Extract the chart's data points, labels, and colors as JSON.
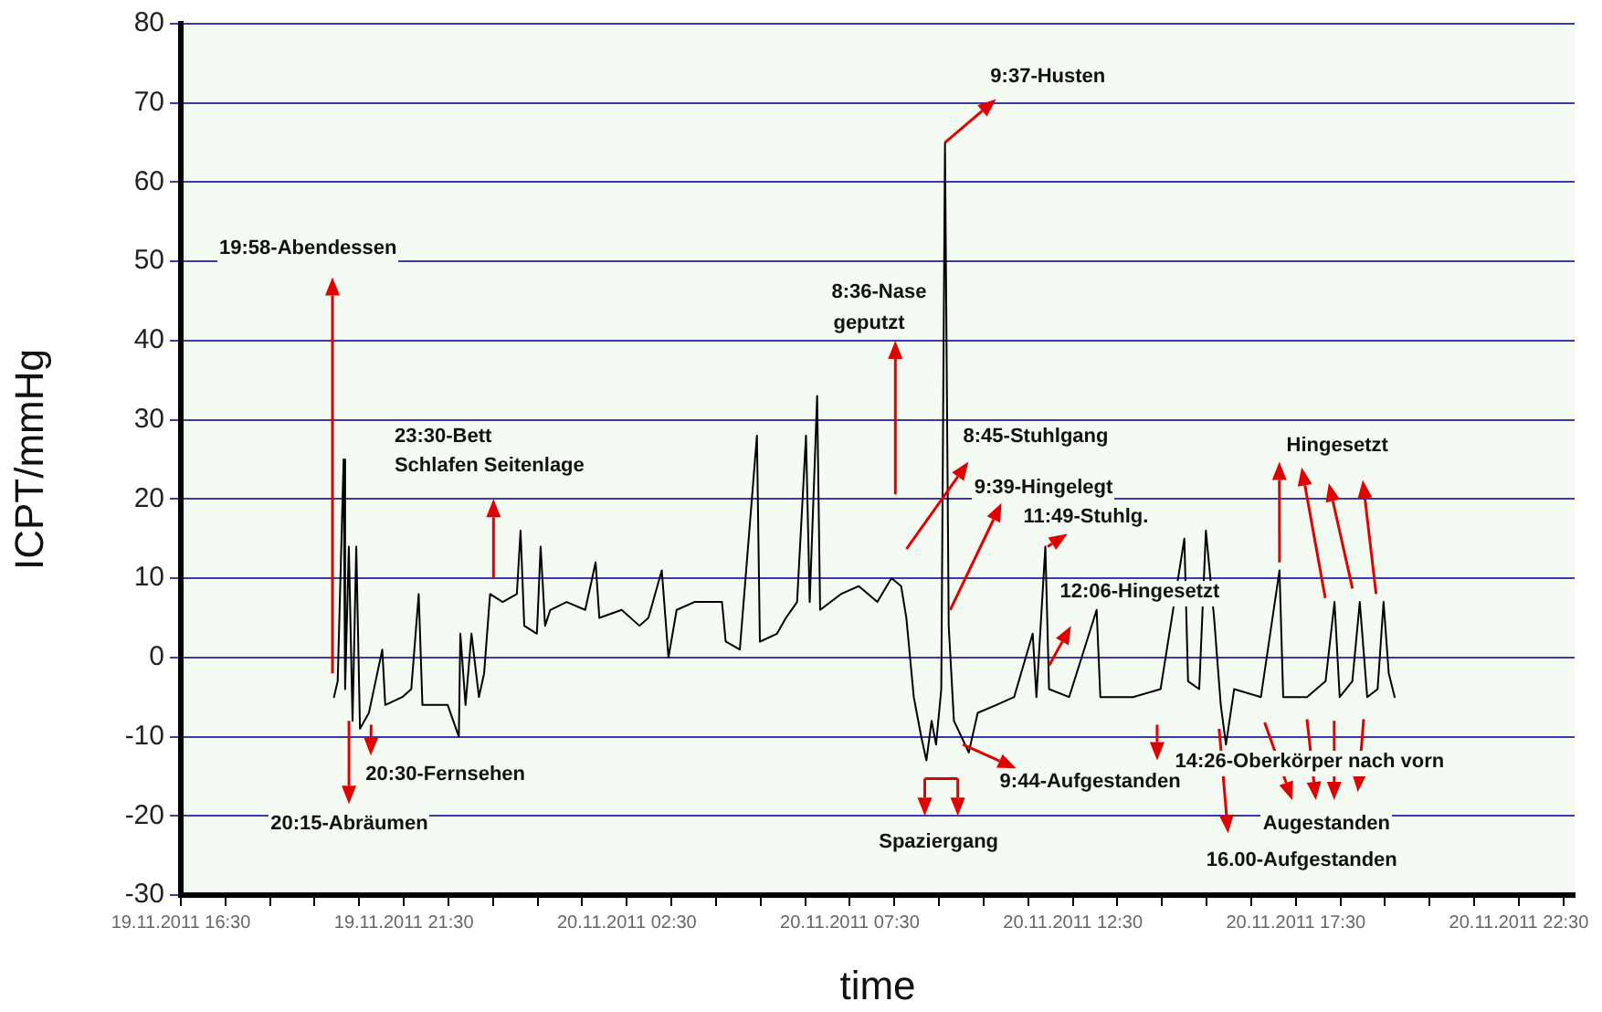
{
  "chart_data": {
    "type": "line",
    "xlabel": "time",
    "ylabel": "ICPT/mmHg",
    "xlim": [
      "2011-11-19T16:30",
      "2011-11-20T23:45"
    ],
    "ylim": [
      -30,
      80
    ],
    "xticks": [
      {
        "value": "2011-11-19T16:30",
        "label": "19.11.2011 16:30"
      },
      {
        "value": "2011-11-19T17:30",
        "label": null
      },
      {
        "value": "2011-11-19T18:30",
        "label": null
      },
      {
        "value": "2011-11-19T19:30",
        "label": null
      },
      {
        "value": "2011-11-19T20:30",
        "label": null
      },
      {
        "value": "2011-11-19T21:30",
        "label": "19.11.2011 21:30"
      },
      {
        "value": "2011-11-19T22:30",
        "label": null
      },
      {
        "value": "2011-11-19T23:30",
        "label": null
      },
      {
        "value": "2011-11-20T00:30",
        "label": null
      },
      {
        "value": "2011-11-20T01:30",
        "label": null
      },
      {
        "value": "2011-11-20T02:30",
        "label": "20.11.2011 02:30"
      },
      {
        "value": "2011-11-20T03:30",
        "label": null
      },
      {
        "value": "2011-11-20T04:30",
        "label": null
      },
      {
        "value": "2011-11-20T05:30",
        "label": null
      },
      {
        "value": "2011-11-20T06:30",
        "label": null
      },
      {
        "value": "2011-11-20T07:30",
        "label": "20.11.2011 07:30"
      },
      {
        "value": "2011-11-20T08:30",
        "label": null
      },
      {
        "value": "2011-11-20T09:30",
        "label": null
      },
      {
        "value": "2011-11-20T10:30",
        "label": null
      },
      {
        "value": "2011-11-20T11:30",
        "label": null
      },
      {
        "value": "2011-11-20T12:30",
        "label": "20.11.2011 12:30"
      },
      {
        "value": "2011-11-20T13:30",
        "label": null
      },
      {
        "value": "2011-11-20T14:30",
        "label": null
      },
      {
        "value": "2011-11-20T15:30",
        "label": null
      },
      {
        "value": "2011-11-20T16:30",
        "label": null
      },
      {
        "value": "2011-11-20T17:30",
        "label": "20.11.2011 17:30"
      },
      {
        "value": "2011-11-20T18:30",
        "label": null
      },
      {
        "value": "2011-11-20T19:30",
        "label": null
      },
      {
        "value": "2011-11-20T20:30",
        "label": null
      },
      {
        "value": "2011-11-20T21:30",
        "label": null
      },
      {
        "value": "2011-11-20T22:30",
        "label": "20.11.2011 22:30"
      },
      {
        "value": "2011-11-20T23:30",
        "label": null
      }
    ],
    "yticks": [
      -30,
      -20,
      -10,
      0,
      10,
      20,
      30,
      40,
      50,
      60,
      70,
      80
    ],
    "grid": "y",
    "legend": false,
    "marker": "none",
    "line_style": "solid",
    "series": [
      {
        "color": "#000000",
        "x": [
          "2011-11-19T19:56",
          "2011-11-19T20:01",
          "2011-11-19T20:09",
          "2011-11-19T20:11",
          "2011-11-19T20:16",
          "2011-11-19T20:21",
          "2011-11-19T20:26",
          "2011-11-19T20:31",
          "2011-11-19T20:43",
          "2011-11-19T21:01",
          "2011-11-19T21:05",
          "2011-11-19T21:28",
          "2011-11-19T21:40",
          "2011-11-19T21:50",
          "2011-11-19T21:55",
          "2011-11-19T22:17",
          "2011-11-19T22:29",
          "2011-11-19T22:44",
          "2011-11-19T22:46",
          "2011-11-19T22:53",
          "2011-11-19T23:01",
          "2011-11-19T23:11",
          "2011-11-19T23:18",
          "2011-11-19T23:26",
          "2011-11-19T23:43",
          "2011-11-20T00:02",
          "2011-11-20T00:07",
          "2011-11-20T00:12",
          "2011-11-20T00:29",
          "2011-11-20T00:34",
          "2011-11-20T00:40",
          "2011-11-20T00:47",
          "2011-11-20T01:09",
          "2011-11-20T01:34",
          "2011-11-20T01:48",
          "2011-11-20T01:53",
          "2011-11-20T02:23",
          "2011-11-20T02:47",
          "2011-11-20T02:59",
          "2011-11-20T03:17",
          "2011-11-20T03:26",
          "2011-11-20T03:37",
          "2011-11-20T04:01",
          "2011-11-20T04:38",
          "2011-11-20T04:43",
          "2011-11-20T05:02",
          "2011-11-20T05:25",
          "2011-11-20T05:29",
          "2011-11-20T05:52",
          "2011-11-20T06:04",
          "2011-11-20T06:19",
          "2011-11-20T06:31",
          "2011-11-20T06:36",
          "2011-11-20T06:46",
          "2011-11-20T06:50",
          "2011-11-20T07:18",
          "2011-11-20T07:42",
          "2011-11-20T08:07",
          "2011-11-20T08:26",
          "2011-11-20T08:39",
          "2011-11-20T08:46",
          "2011-11-20T08:56",
          "2011-11-20T09:06",
          "2011-11-20T09:13",
          "2011-11-20T09:20",
          "2011-11-20T09:26",
          "2011-11-20T09:33",
          "2011-11-20T09:38",
          "2011-11-20T09:43",
          "2011-11-20T09:50",
          "2011-11-20T10:00",
          "2011-11-20T10:10",
          "2011-11-20T10:22",
          "2011-11-20T10:47",
          "2011-11-20T11:11",
          "2011-11-20T11:36",
          "2011-11-20T11:41",
          "2011-11-20T11:53",
          "2011-11-20T11:58",
          "2011-11-20T12:25",
          "2011-11-20T13:02",
          "2011-11-20T13:07",
          "2011-11-20T13:51",
          "2011-11-20T14:28",
          "2011-11-20T15:00",
          "2011-11-20T15:05",
          "2011-11-20T15:20",
          "2011-11-20T15:29",
          "2011-11-20T15:40",
          "2011-11-20T15:49",
          "2011-11-20T15:56",
          "2011-11-20T16:07",
          "2011-11-20T16:43",
          "2011-11-20T17:08",
          "2011-11-20T17:13",
          "2011-11-20T17:45",
          "2011-11-20T18:10",
          "2011-11-20T18:22",
          "2011-11-20T18:29",
          "2011-11-20T18:46",
          "2011-11-20T18:56",
          "2011-11-20T19:06",
          "2011-11-20T19:20",
          "2011-11-20T19:28",
          "2011-11-20T19:35",
          "2011-11-20T19:43"
        ],
        "values": [
          -5,
          -3,
          25,
          -4,
          14,
          -8,
          14,
          -9,
          -7,
          1,
          -6,
          -5,
          -4,
          8,
          -6,
          -6,
          -6,
          -10,
          3,
          -6,
          3,
          -5,
          -2,
          8,
          7,
          8,
          16,
          4,
          3,
          14,
          4,
          6,
          7,
          6,
          12,
          5,
          6,
          4,
          5,
          11,
          0,
          6,
          7,
          7,
          2,
          1,
          28,
          2,
          3,
          5,
          7,
          28,
          7,
          33,
          6,
          8,
          9,
          7,
          10,
          9,
          5,
          -5,
          -10,
          -13,
          -8,
          -11,
          -4,
          65,
          4,
          -8,
          -10,
          -12,
          -7,
          -6,
          -5,
          3,
          -5,
          14,
          -4,
          -5,
          6,
          -5,
          -5,
          -4,
          15,
          -3,
          -4,
          16,
          5,
          -6,
          -11,
          -4,
          -5,
          11,
          -5,
          -5,
          -3,
          7,
          -5,
          -3,
          7,
          -5,
          -4,
          7,
          -2,
          -5
        ]
      }
    ],
    "annotations": [
      "19:58-Abendessen",
      "23:30-Bett",
      "Schlafen Seitenlage",
      {
        "text": "20:30-Fernsehen",
        "x": "2011-11-19T20:46",
        "y": -8.5
      },
      "20:15-Abräumen",
      {
        "text": "9:37-Husten",
        "x": "2011-11-20T09:38",
        "y": 65
      },
      "8:36-Nase",
      "geputzt",
      "8:45-Stuhlgang",
      {
        "text": "Hingesetzt",
        "x": "2011-11-20T17:08",
        "y": 12
      },
      {
        "text": "9:39-Hingelegt",
        "x": "2011-11-20T09:45",
        "y": 6
      },
      {
        "text": "11:49-Stuhlg.",
        "x": "2011-11-20T11:56",
        "y": 14
      },
      "12:06-Hingesetzt",
      "14:26-Oberkörper nach vorn",
      {
        "text": "9:44-Aufgestanden",
        "x": "2011-11-20T10:02",
        "y": -11
      },
      "Spaziergang",
      "Augestanden",
      "16.00-Aufgestanden"
    ]
  }
}
